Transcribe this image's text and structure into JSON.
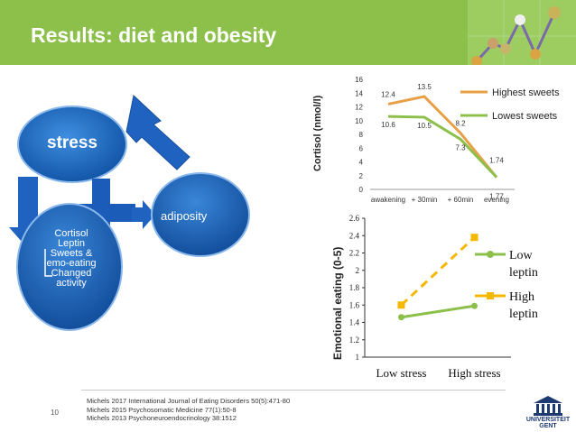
{
  "header": {
    "title": "Results: diet and obesity"
  },
  "diagram": {
    "stress": "stress",
    "adiposity": "adiposity",
    "box_lines": [
      "Cortisol",
      "Leptin",
      "Sweets &",
      "emo-eating",
      "Changed",
      "activity"
    ]
  },
  "chart_data": [
    {
      "type": "line",
      "ylabel": "Cortisol (nmol/l)",
      "categories": [
        "awakening",
        "+ 30min",
        "+ 60min",
        "evening"
      ],
      "ylim": [
        0,
        16
      ],
      "yticks": [
        "0",
        "2",
        "4",
        "6",
        "8",
        "10",
        "12",
        "14",
        "16"
      ],
      "series": [
        {
          "name": "Highest sweets",
          "color": "#e8a047",
          "values": [
            12.4,
            13.5,
            8.2,
            1.74
          ]
        },
        {
          "name": "Lowest sweets",
          "color": "#8cc04b",
          "values": [
            10.6,
            10.5,
            7.3,
            1.77
          ]
        }
      ],
      "data_labels": [
        "12.4",
        "13.5",
        "8.2",
        "1.74",
        "10.6",
        "10.5",
        "7.3",
        "1.77"
      ]
    },
    {
      "type": "line",
      "ylabel": "Emotional eating (0-5)",
      "categories": [
        "Low stress",
        "High stress"
      ],
      "ylim": [
        1,
        2.6
      ],
      "yticks": [
        "1",
        "1.2",
        "1.4",
        "1.6",
        "1.8",
        "2",
        "2.2",
        "2.4",
        "2.6"
      ],
      "series": [
        {
          "name": "Low leptin",
          "color": "#8cc04b",
          "values": [
            1.46,
            1.59
          ]
        },
        {
          "name": "High leptin",
          "color": "#f5b800",
          "values": [
            1.6,
            2.38
          ]
        }
      ]
    }
  ],
  "footer": {
    "page": "10",
    "refs": [
      "Michels 2017 International Journal of Eating Disorders 50(5):471-80",
      "Michels 2015 Psychosomatic Medicine 77(1):50-8",
      "Michels 2013 Psychoneuroendocrinology 38:1512"
    ],
    "logo": "UNIVERSITEIT GENT"
  }
}
